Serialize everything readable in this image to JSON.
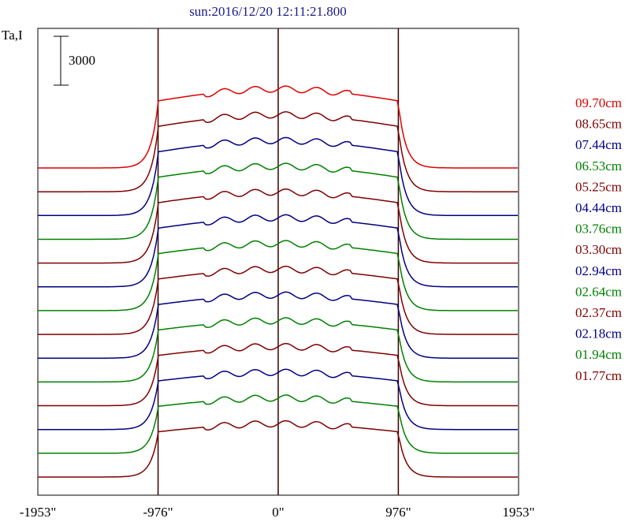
{
  "chart_data": {
    "type": "line",
    "title": "sun:2016/12/20 12:11:21.800",
    "ylabel": "Ta,I",
    "scale_bar_label": "3000",
    "x_ticks": [
      "-1953\"",
      "-976\"",
      "0\"",
      "976\"",
      "1953\""
    ],
    "x_tick_values": [
      -1953,
      -976,
      0,
      976,
      1953
    ],
    "vlines": [
      -976,
      0,
      976
    ],
    "xlim": [
      -1953,
      1953
    ],
    "series": [
      {
        "name": "09.70cm",
        "color": "#e00000"
      },
      {
        "name": "08.65cm",
        "color": "#800000"
      },
      {
        "name": "07.44cm",
        "color": "#000080"
      },
      {
        "name": "06.53cm",
        "color": "#008000"
      },
      {
        "name": "05.25cm",
        "color": "#800000"
      },
      {
        "name": "04.44cm",
        "color": "#000080"
      },
      {
        "name": "03.76cm",
        "color": "#008000"
      },
      {
        "name": "03.30cm",
        "color": "#800000"
      },
      {
        "name": "02.94cm",
        "color": "#000080"
      },
      {
        "name": "02.64cm",
        "color": "#008000"
      },
      {
        "name": "02.37cm",
        "color": "#800000"
      },
      {
        "name": "02.18cm",
        "color": "#000080"
      },
      {
        "name": "01.94cm",
        "color": "#008000"
      },
      {
        "name": "01.77cm",
        "color": "#800000"
      }
    ]
  }
}
